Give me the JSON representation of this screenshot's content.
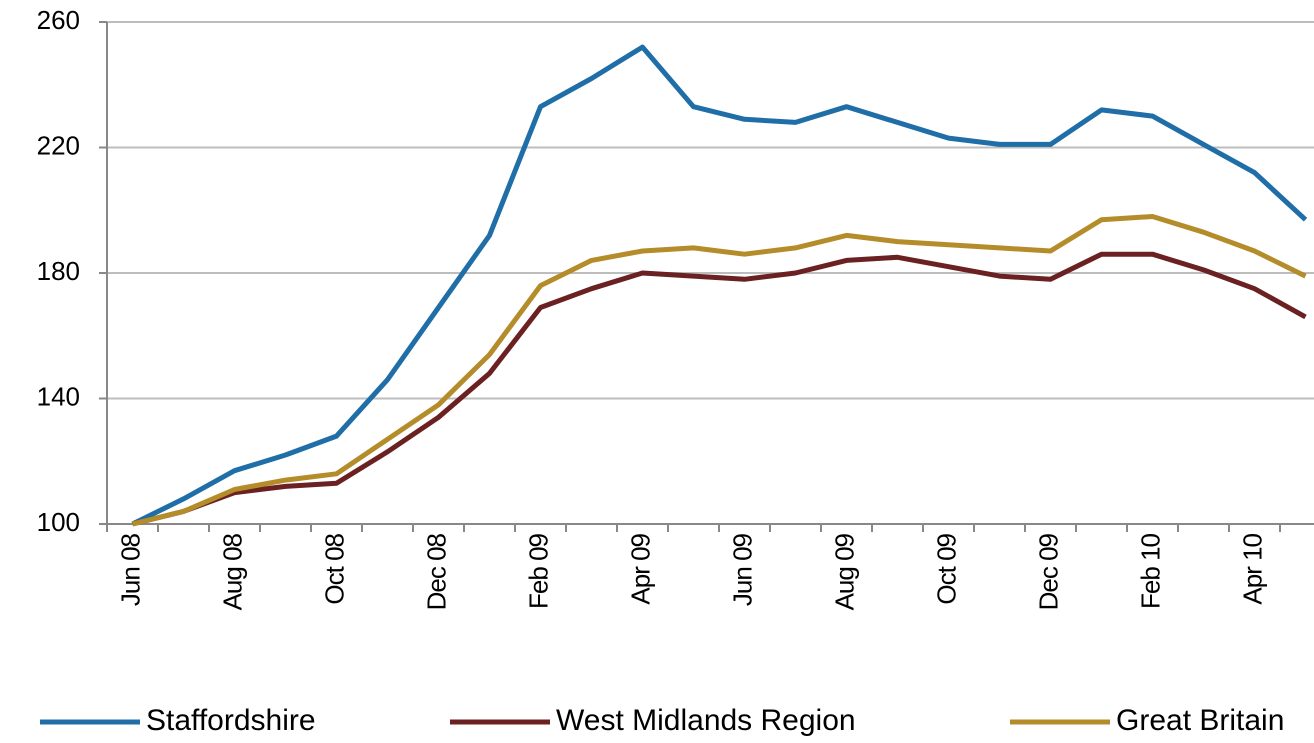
{
  "chart_data": {
    "type": "line",
    "categories": [
      "Jun 08",
      null,
      "Aug 08",
      null,
      "Oct 08",
      null,
      "Dec 08",
      null,
      "Feb 09",
      null,
      "Apr 09",
      null,
      "Jun 09",
      null,
      "Aug 09",
      null,
      "Oct 09",
      null,
      "Dec 09",
      null,
      "Feb 10",
      null,
      "Apr 10",
      null
    ],
    "series": [
      {
        "name": "Staffordshire",
        "color": "#1f6ea8",
        "values": [
          100,
          108,
          117,
          122,
          128,
          146,
          169,
          192,
          233,
          242,
          252,
          233,
          229,
          228,
          233,
          228,
          223,
          221,
          221,
          232,
          230,
          221,
          212,
          197
        ]
      },
      {
        "name": "West Midlands Region",
        "color": "#6b2121",
        "values": [
          100,
          104,
          110,
          112,
          113,
          123,
          134,
          148,
          169,
          175,
          180,
          179,
          178,
          180,
          184,
          185,
          182,
          179,
          178,
          186,
          186,
          181,
          175,
          166
        ]
      },
      {
        "name": "Great Britain",
        "color": "#b58c2a",
        "values": [
          100,
          104,
          111,
          114,
          116,
          127,
          138,
          154,
          176,
          184,
          187,
          188,
          186,
          188,
          192,
          190,
          189,
          188,
          187,
          197,
          198,
          193,
          187,
          179
        ]
      }
    ],
    "ylim": [
      100,
      260
    ],
    "yticks": [
      100,
      140,
      180,
      220,
      260
    ],
    "grid": true,
    "legend": "bottom"
  }
}
